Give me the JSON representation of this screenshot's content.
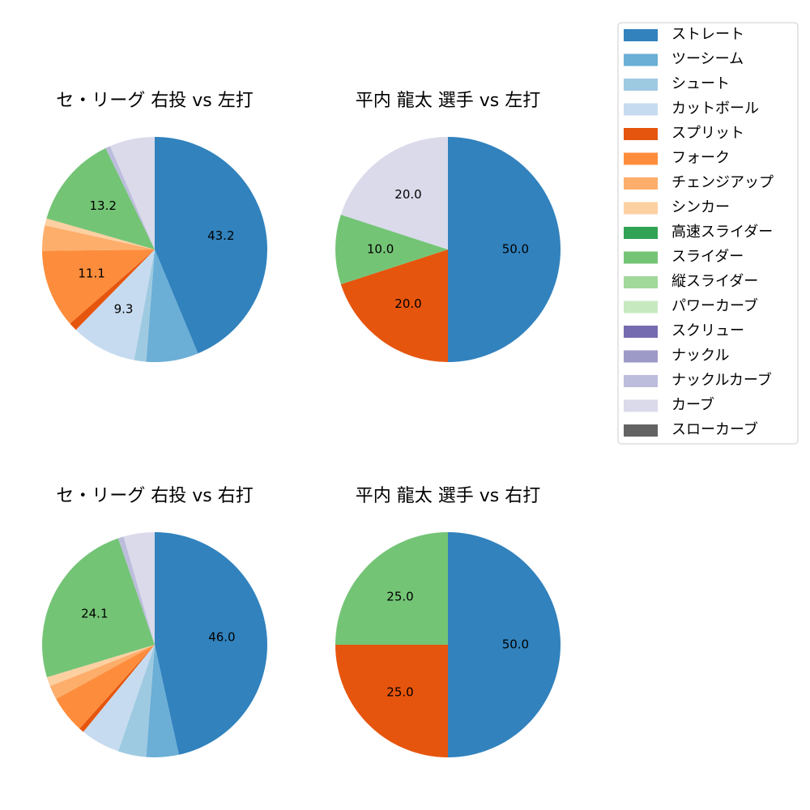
{
  "legend": {
    "position": "right",
    "items": [
      {
        "name": "ストレート",
        "color": "#3182bd"
      },
      {
        "name": "ツーシーム",
        "color": "#6baed6"
      },
      {
        "name": "シュート",
        "color": "#9ecae1"
      },
      {
        "name": "カットボール",
        "color": "#c6dbef"
      },
      {
        "name": "スプリット",
        "color": "#e6550d"
      },
      {
        "name": "フォーク",
        "color": "#fd8d3c"
      },
      {
        "name": "チェンジアップ",
        "color": "#fdae6b"
      },
      {
        "name": "シンカー",
        "color": "#fdd0a2"
      },
      {
        "name": "高速スライダー",
        "color": "#31a354"
      },
      {
        "name": "スライダー",
        "color": "#74c476"
      },
      {
        "name": "縦スライダー",
        "color": "#a1d99b"
      },
      {
        "name": "パワーカーブ",
        "color": "#c7e9c0"
      },
      {
        "name": "スクリュー",
        "color": "#756bb1"
      },
      {
        "name": "ナックル",
        "color": "#9e9ac8"
      },
      {
        "name": "ナックルカーブ",
        "color": "#bcbddc"
      },
      {
        "name": "カーブ",
        "color": "#dadaeb"
      },
      {
        "name": "スローカーブ",
        "color": "#636363"
      }
    ]
  },
  "chart_data": [
    {
      "type": "pie",
      "title": "セ・リーグ 右投 vs 左打",
      "slices": [
        {
          "name": "ストレート",
          "value": 43.2,
          "label": "43.2"
        },
        {
          "name": "ツーシーム",
          "value": 7.4,
          "label": ""
        },
        {
          "name": "シュート",
          "value": 1.7,
          "label": ""
        },
        {
          "name": "カットボール",
          "value": 9.3,
          "label": "9.3"
        },
        {
          "name": "スプリット",
          "value": 1.2,
          "label": ""
        },
        {
          "name": "フォーク",
          "value": 11.1,
          "label": "11.1"
        },
        {
          "name": "チェンジアップ",
          "value": 3.6,
          "label": ""
        },
        {
          "name": "シンカー",
          "value": 1.0,
          "label": ""
        },
        {
          "name": "スライダー",
          "value": 13.2,
          "label": "13.2"
        },
        {
          "name": "ナックルカーブ",
          "value": 0.7,
          "label": ""
        },
        {
          "name": "カーブ",
          "value": 6.4,
          "label": ""
        }
      ]
    },
    {
      "type": "pie",
      "title": "平内 龍太 選手 vs 左打",
      "slices": [
        {
          "name": "ストレート",
          "value": 50.0,
          "label": "50.0"
        },
        {
          "name": "スプリット",
          "value": 20.0,
          "label": "20.0"
        },
        {
          "name": "スライダー",
          "value": 10.0,
          "label": "10.0"
        },
        {
          "name": "カーブ",
          "value": 20.0,
          "label": "20.0"
        }
      ]
    },
    {
      "type": "pie",
      "title": "セ・リーグ 右投 vs 右打",
      "slices": [
        {
          "name": "ストレート",
          "value": 46.0,
          "label": "46.0"
        },
        {
          "name": "ツーシーム",
          "value": 4.6,
          "label": ""
        },
        {
          "name": "シュート",
          "value": 4.0,
          "label": ""
        },
        {
          "name": "カットボール",
          "value": 5.6,
          "label": ""
        },
        {
          "name": "スプリット",
          "value": 0.7,
          "label": ""
        },
        {
          "name": "フォーク",
          "value": 5.3,
          "label": ""
        },
        {
          "name": "チェンジアップ",
          "value": 2.0,
          "label": ""
        },
        {
          "name": "シンカー",
          "value": 1.3,
          "label": ""
        },
        {
          "name": "スライダー",
          "value": 24.1,
          "label": "24.1"
        },
        {
          "name": "ナックルカーブ",
          "value": 0.8,
          "label": ""
        },
        {
          "name": "カーブ",
          "value": 4.4,
          "label": ""
        }
      ]
    },
    {
      "type": "pie",
      "title": "平内 龍太 選手 vs 右打",
      "slices": [
        {
          "name": "ストレート",
          "value": 50.0,
          "label": "50.0"
        },
        {
          "name": "スプリット",
          "value": 25.0,
          "label": "25.0"
        },
        {
          "name": "スライダー",
          "value": 25.0,
          "label": "25.0"
        }
      ]
    }
  ]
}
